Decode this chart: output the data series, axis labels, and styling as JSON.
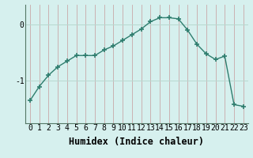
{
  "x": [
    0,
    1,
    2,
    3,
    4,
    5,
    6,
    7,
    8,
    9,
    10,
    11,
    12,
    13,
    14,
    15,
    16,
    17,
    18,
    19,
    20,
    21,
    22,
    23
  ],
  "y": [
    -1.35,
    -1.1,
    -0.9,
    -0.75,
    -0.65,
    -0.55,
    -0.55,
    -0.55,
    -0.45,
    -0.38,
    -0.28,
    -0.18,
    -0.08,
    0.05,
    0.12,
    0.12,
    0.1,
    -0.1,
    -0.35,
    -0.52,
    -0.62,
    -0.56,
    -1.42,
    -1.45
  ],
  "xlabel": "Humidex (Indice chaleur)",
  "ylabel": "",
  "bg_color": "#d6f0ee",
  "line_color": "#2e7d6e",
  "marker_color": "#2e7d6e",
  "grid_color_v": "#c8a8a8",
  "grid_color_h": "#b8d8d0",
  "yticks": [
    -1,
    0
  ],
  "ylim": [
    -1.75,
    0.35
  ],
  "xlim": [
    -0.5,
    23.5
  ],
  "xlabel_fontsize": 8.5,
  "tick_fontsize": 7.0
}
